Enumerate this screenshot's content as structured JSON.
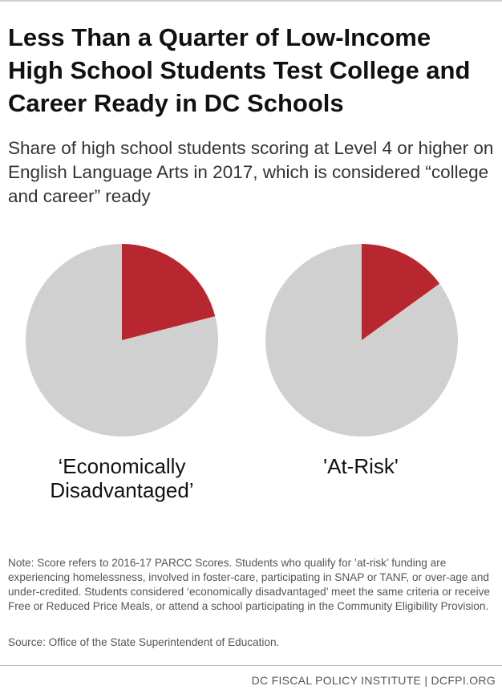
{
  "title": "Less Than a Quarter of Low-Income High School Students Test College and Career Ready in DC Schools",
  "subtitle": "Share of high school students scoring at Level 4 or higher on English Language Arts in 2017, which is considered “college and career” ready",
  "colors": {
    "ready": "#b8262f",
    "not_ready": "#d0d0d0"
  },
  "chart_data": {
    "type": "pie",
    "title": "",
    "pies": [
      {
        "label": "‘Economically Disadvantaged’",
        "label_lines": [
          "‘Economically",
          "Disadvantaged’"
        ],
        "ready_share": 21
      },
      {
        "label": "'At-Risk'",
        "label_lines": [
          "'At-Risk'"
        ],
        "ready_share": 15
      }
    ]
  },
  "note": "Note: Score refers to 2016-17 PARCC Scores. Students who qualify for ’at-risk’ funding are experiencing homelessness, involved in foster-care, participating in SNAP or TANF, or over-age and under-credited. Students considered ‘economically disadvantaged’ meet the same criteria or receive Free or Reduced Price Meals, or attend a school participating in the Community Eligibility Provision.",
  "source": "Source: Office of the State Superintendent of Education.",
  "footer": "DC FISCAL POLICY INSTITUTE | DCFPI.ORG"
}
